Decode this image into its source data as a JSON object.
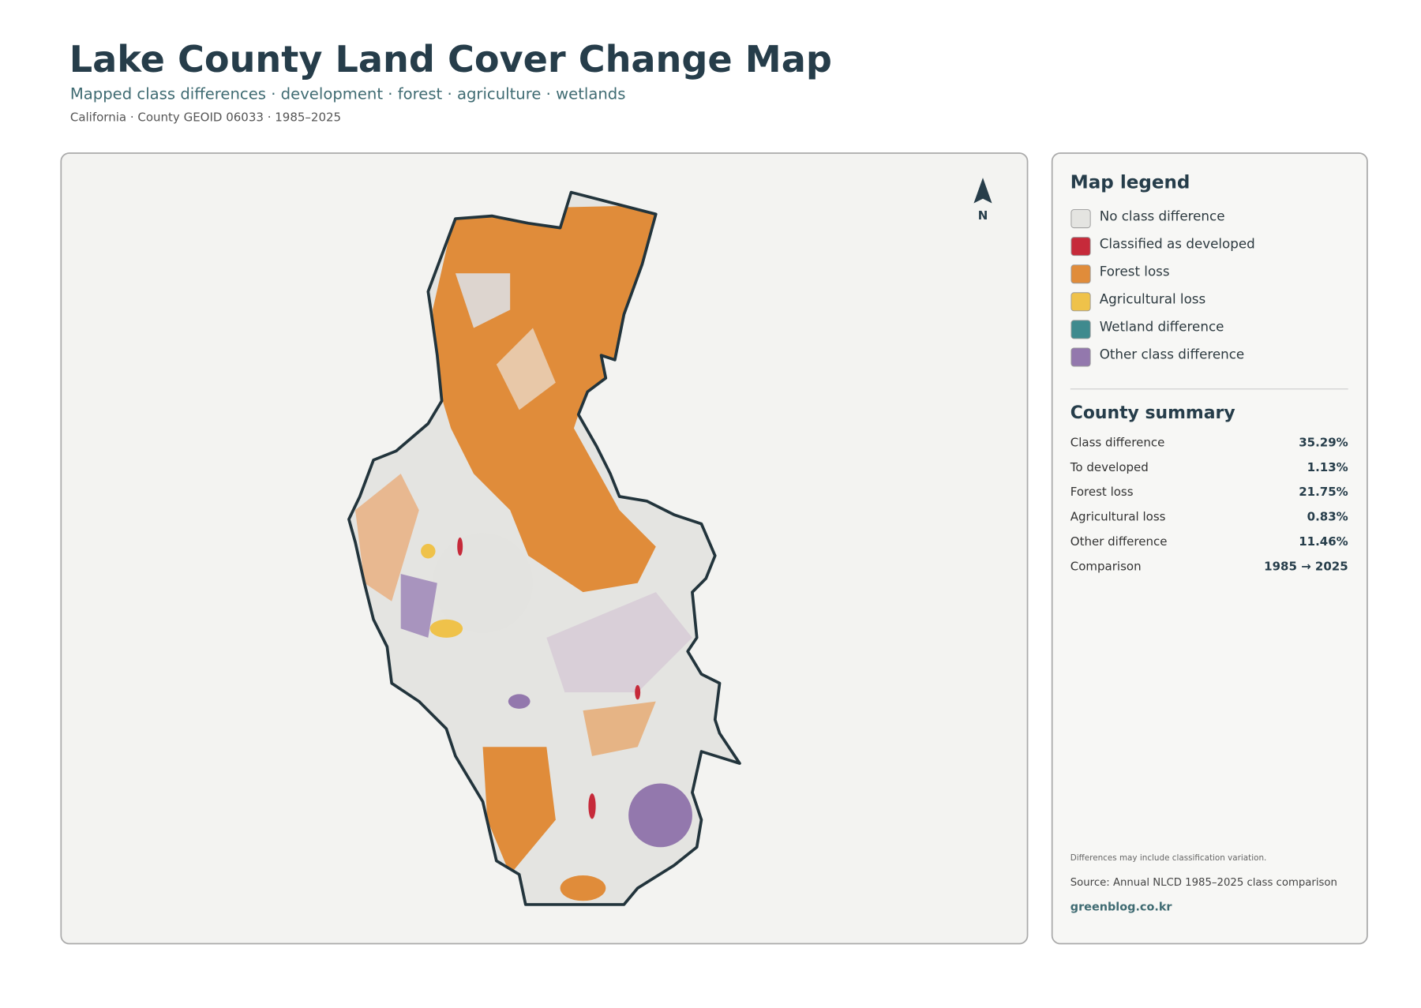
{
  "header": {
    "title": "Lake County Land Cover Change Map",
    "subtitle": "Mapped class differences · development · forest · agriculture · wetlands",
    "meta": "California · County GEOID 06033 · 1985–2025"
  },
  "map": {
    "north_label": "N"
  },
  "legend": {
    "title": "Map legend",
    "items": [
      {
        "label": "No class difference",
        "color": "#e4e4e1"
      },
      {
        "label": "Classified as developed",
        "color": "#c62a3a"
      },
      {
        "label": "Forest loss",
        "color": "#e08c3a"
      },
      {
        "label": "Agricultural loss",
        "color": "#efc24a"
      },
      {
        "label": "Wetland difference",
        "color": "#3f8a8e"
      },
      {
        "label": "Other class difference",
        "color": "#9378ad"
      }
    ]
  },
  "summary": {
    "title": "County summary",
    "rows": [
      [
        "Class difference",
        "35.29%"
      ],
      [
        "To developed",
        "1.13%"
      ],
      [
        "Forest loss",
        "21.75%"
      ],
      [
        "Agricultural loss",
        "0.83%"
      ],
      [
        "Other difference",
        "11.46%"
      ],
      [
        "Comparison",
        "1985 → 2025"
      ]
    ]
  },
  "footer": {
    "note": "Differences may include classification variation.",
    "source": "Source: Annual NLCD 1985–2025 class comparison",
    "link": "greenblog.co.kr"
  }
}
